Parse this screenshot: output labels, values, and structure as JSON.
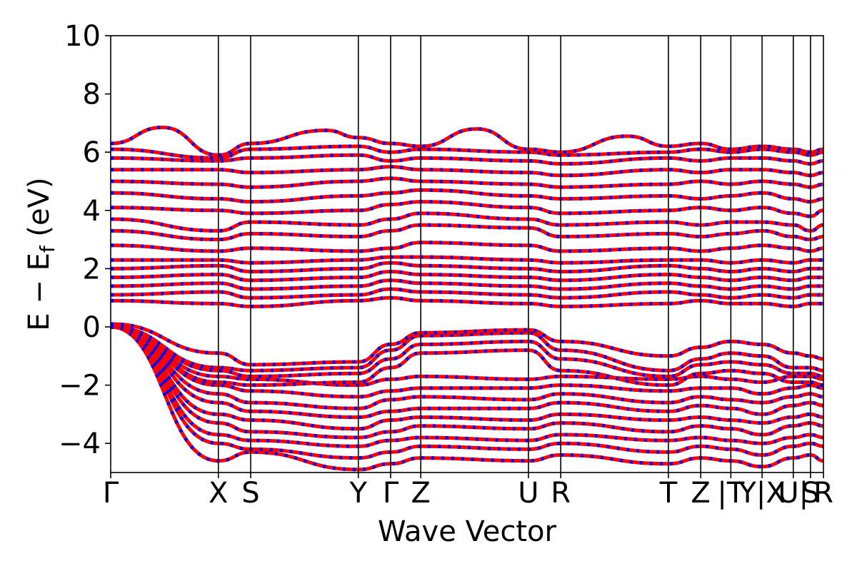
{
  "chart_data": {
    "type": "line",
    "title": "",
    "xlabel": "Wave Vector",
    "ylabel_main": "E − E",
    "ylabel_sub": "f",
    "ylabel_unit": " (eV)",
    "ylim": [
      -5,
      10
    ],
    "yticks": [
      {
        "value": -4,
        "label": "−4"
      },
      {
        "value": -2,
        "label": "−2"
      },
      {
        "value": 0,
        "label": "0"
      },
      {
        "value": 2,
        "label": "2"
      },
      {
        "value": 4,
        "label": "4"
      },
      {
        "value": 6,
        "label": "6"
      },
      {
        "value": 8,
        "label": "8"
      },
      {
        "value": 10,
        "label": "10"
      }
    ],
    "kpath": [
      {
        "label": "Γ",
        "x": 0.0
      },
      {
        "label": "X",
        "x": 1.0
      },
      {
        "label": "S",
        "x": 1.3
      },
      {
        "label": "Y",
        "x": 2.3
      },
      {
        "label": "Γ",
        "x": 2.6
      },
      {
        "label": "Z",
        "x": 2.88
      },
      {
        "label": "U",
        "x": 3.88
      },
      {
        "label": "R",
        "x": 4.18
      },
      {
        "label": "T",
        "x": 5.18
      },
      {
        "label": "Z",
        "x": 5.48
      },
      {
        "label": "|T",
        "x": 5.76
      },
      {
        "label": "Y|X",
        "x": 6.05
      },
      {
        "label": "U|",
        "x": 6.34
      },
      {
        "label": "S",
        "x": 6.5
      },
      {
        "label": "R",
        "x": 6.62
      }
    ],
    "xlim": [
      0.0,
      6.62
    ],
    "grid": false,
    "legend": "none",
    "series_colors": {
      "primary": "#ff0000",
      "overlay": "#0000ff"
    },
    "band_anchors": [
      [
        0.0,
        -4.6,
        -4.3,
        -4.9,
        -4.7,
        -4.5,
        -4.6,
        -4.4,
        -4.7,
        -4.5,
        -4.6,
        -4.8,
        -4.5,
        -4.4,
        -4.6,
        -4.7
      ],
      [
        0.0,
        -4.0,
        -4.2,
        -4.5,
        -4.3,
        -4.1,
        -4.2,
        -4.0,
        -4.3,
        -4.1,
        -4.2,
        -4.4,
        -4.1,
        -4.0,
        -4.1,
        -4.2
      ],
      [
        0.0,
        -3.7,
        -3.9,
        -4.1,
        -3.9,
        -3.8,
        -3.9,
        -3.7,
        -3.9,
        -3.8,
        -3.9,
        -4.0,
        -3.8,
        -3.7,
        -3.8,
        -3.9
      ],
      [
        0.0,
        -3.3,
        -3.6,
        -3.8,
        -3.6,
        -3.4,
        -3.5,
        -3.3,
        -3.6,
        -3.4,
        -3.5,
        -3.7,
        -3.4,
        -3.3,
        -3.4,
        -3.5
      ],
      [
        0.0,
        -3.0,
        -3.2,
        -3.5,
        -3.2,
        -3.1,
        -3.2,
        -3.0,
        -3.2,
        -3.1,
        -3.2,
        -3.3,
        -3.1,
        -3.0,
        -3.1,
        -3.2
      ],
      [
        0.0,
        -2.6,
        -2.9,
        -3.1,
        -2.9,
        -2.8,
        -2.8,
        -2.6,
        -2.9,
        -2.7,
        -2.8,
        -3.0,
        -2.7,
        -2.6,
        -2.7,
        -2.8
      ],
      [
        0.0,
        -2.3,
        -2.6,
        -2.8,
        -2.5,
        -2.4,
        -2.5,
        -2.3,
        -2.6,
        -2.4,
        -2.5,
        -2.6,
        -2.4,
        -2.3,
        -2.4,
        -2.5
      ],
      [
        0.0,
        -2.0,
        -2.2,
        -2.4,
        -2.2,
        -2.1,
        -2.1,
        -2.0,
        -2.2,
        -2.1,
        -2.1,
        -2.3,
        -2.1,
        -2.0,
        -2.1,
        -2.1
      ],
      [
        0.0,
        -1.7,
        -1.8,
        -2.0,
        -1.8,
        -1.7,
        -1.8,
        -1.7,
        -1.8,
        -1.7,
        -1.8,
        -1.9,
        -1.7,
        -1.7,
        -1.8,
        -1.8
      ],
      [
        0.0,
        -1.4,
        -1.5,
        -1.4,
        -0.8,
        -0.3,
        -0.2,
        -0.8,
        -1.5,
        -1.1,
        -0.9,
        -1.0,
        -1.4,
        -1.4,
        -1.5,
        -1.5
      ],
      [
        0.0,
        -1.5,
        -1.7,
        -1.6,
        -1.1,
        -0.6,
        -0.5,
        -1.1,
        -1.7,
        -1.3,
        -1.2,
        -1.3,
        -1.6,
        -1.6,
        -1.7,
        -1.7
      ],
      [
        0.0,
        -1.9,
        -2.0,
        -1.9,
        -1.4,
        -0.9,
        -0.8,
        -1.5,
        -2.0,
        -1.6,
        -1.5,
        -1.6,
        -1.9,
        -1.9,
        -2.0,
        -2.0
      ],
      [
        0.1,
        -0.9,
        -1.3,
        -1.2,
        -0.6,
        -0.2,
        -0.1,
        -0.5,
        -1.0,
        -0.7,
        -0.5,
        -0.6,
        -0.9,
        -1.0,
        -1.1,
        -1.2
      ],
      [
        0.9,
        0.8,
        0.7,
        0.9,
        1.0,
        0.9,
        0.8,
        0.7,
        0.8,
        0.9,
        0.8,
        0.8,
        0.7,
        0.8,
        0.8,
        0.7
      ],
      [
        1.1,
        1.2,
        1.0,
        1.1,
        1.3,
        1.2,
        1.1,
        1.0,
        1.2,
        1.1,
        1.0,
        1.1,
        1.0,
        1.1,
        1.1,
        1.0
      ],
      [
        1.4,
        1.5,
        1.3,
        1.4,
        1.6,
        1.5,
        1.4,
        1.3,
        1.5,
        1.4,
        1.3,
        1.4,
        1.3,
        1.4,
        1.4,
        1.3
      ],
      [
        1.7,
        1.8,
        1.6,
        1.7,
        1.9,
        1.8,
        1.7,
        1.6,
        1.8,
        1.7,
        1.6,
        1.7,
        1.6,
        1.7,
        1.7,
        1.6
      ],
      [
        2.0,
        2.1,
        1.9,
        2.0,
        2.2,
        2.1,
        2.0,
        1.9,
        2.1,
        2.0,
        1.9,
        2.0,
        1.9,
        2.0,
        2.0,
        1.9
      ],
      [
        2.3,
        2.3,
        2.2,
        2.3,
        2.4,
        2.4,
        2.3,
        2.2,
        2.3,
        2.3,
        2.2,
        2.3,
        2.2,
        2.3,
        2.3,
        2.2
      ],
      [
        2.8,
        2.6,
        2.7,
        2.6,
        2.7,
        2.9,
        2.8,
        2.6,
        2.7,
        2.6,
        2.7,
        2.8,
        2.7,
        2.6,
        2.7,
        2.8
      ],
      [
        3.3,
        3.0,
        3.2,
        3.1,
        3.3,
        3.5,
        3.4,
        3.1,
        3.2,
        3.1,
        3.2,
        3.3,
        3.1,
        3.0,
        3.1,
        3.2
      ],
      [
        3.7,
        3.3,
        3.6,
        3.5,
        3.7,
        3.9,
        3.7,
        3.5,
        3.6,
        3.5,
        3.6,
        3.6,
        3.5,
        3.3,
        3.5,
        3.6
      ],
      [
        4.1,
        4.0,
        3.9,
        4.0,
        4.2,
        4.3,
        4.1,
        3.9,
        4.0,
        4.1,
        4.0,
        4.1,
        3.9,
        3.8,
        4.0,
        4.1
      ],
      [
        4.6,
        4.4,
        4.3,
        4.5,
        4.6,
        4.7,
        4.5,
        4.4,
        4.5,
        4.4,
        4.5,
        4.6,
        4.4,
        4.3,
        4.4,
        4.6
      ],
      [
        5.0,
        4.9,
        4.8,
        5.0,
        5.1,
        5.0,
        4.9,
        4.8,
        4.9,
        5.0,
        4.9,
        5.0,
        4.9,
        4.8,
        4.9,
        5.0
      ],
      [
        5.4,
        5.4,
        5.3,
        5.4,
        5.5,
        5.4,
        5.3,
        5.2,
        5.4,
        5.3,
        5.4,
        5.4,
        5.3,
        5.2,
        5.3,
        5.4
      ],
      [
        5.8,
        5.7,
        5.8,
        5.9,
        5.7,
        5.8,
        5.7,
        5.6,
        5.8,
        5.7,
        5.8,
        5.8,
        5.7,
        5.6,
        5.7,
        5.8
      ],
      [
        6.1,
        5.8,
        6.1,
        6.2,
        6.0,
        6.1,
        6.0,
        5.9,
        6.0,
        6.1,
        6.0,
        6.1,
        6.0,
        5.9,
        6.0,
        6.1
      ],
      [
        6.3,
        5.9,
        6.3,
        6.5,
        6.3,
        6.2,
        6.1,
        6.0,
        6.2,
        6.3,
        6.1,
        6.2,
        6.1,
        6.0,
        6.1,
        6.2
      ]
    ],
    "band_peaks": [
      {
        "band": 28,
        "x": 0.48,
        "y": 6.85
      },
      {
        "band": 28,
        "x": 2.0,
        "y": 6.75
      },
      {
        "band": 28,
        "x": 3.4,
        "y": 6.8
      },
      {
        "band": 28,
        "x": 4.8,
        "y": 6.55
      }
    ]
  }
}
